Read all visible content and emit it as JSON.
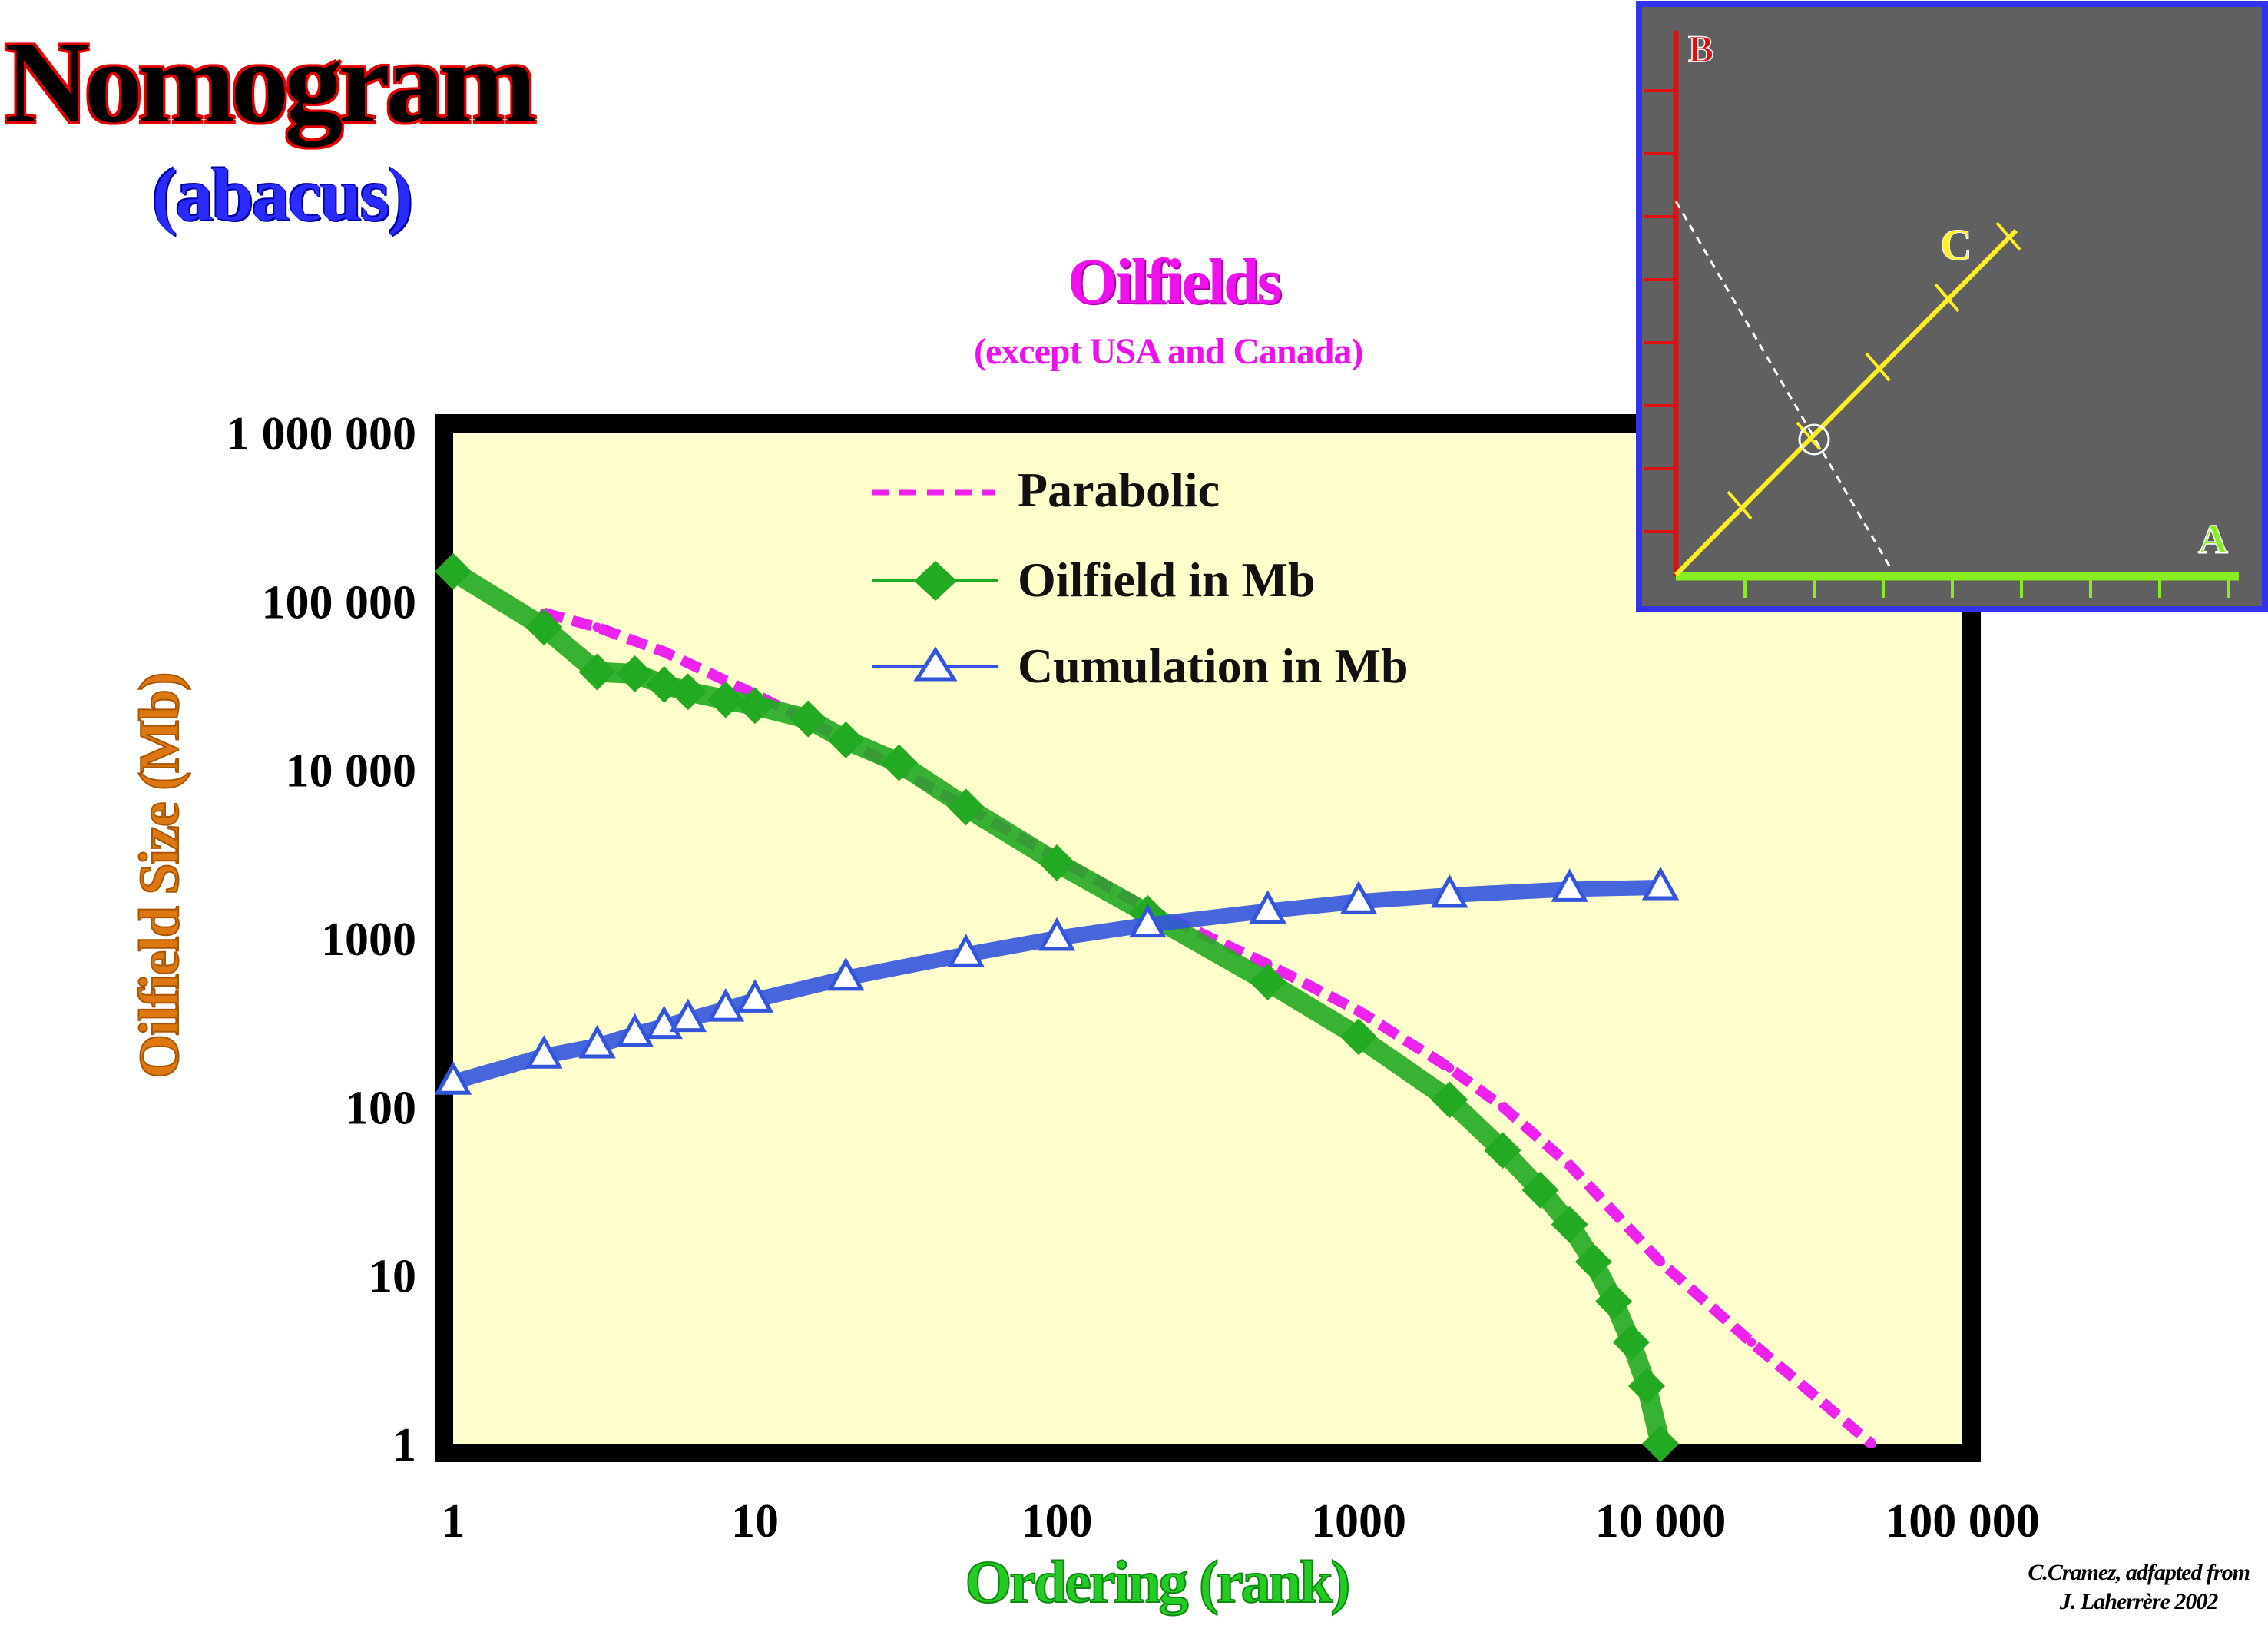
{
  "header": {
    "title": "Nomogram",
    "subtitle": "(abacus)"
  },
  "credit": {
    "line1": "C.Cramez, adfapted from",
    "line2": "J. Laherrère 2002"
  },
  "chart_data": {
    "type": "line",
    "title": "Oilfields",
    "subtitle": "(except USA and Canada)",
    "xlabel": "Ordering (rank)",
    "ylabel": "Oilfield Size (Mb)",
    "x_scale": "log",
    "y_scale": "log",
    "xlim": [
      1,
      100000
    ],
    "ylim": [
      1,
      1000000
    ],
    "x_ticks": [
      {
        "value": 1,
        "label": "1"
      },
      {
        "value": 10,
        "label": "10"
      },
      {
        "value": 100,
        "label": "100"
      },
      {
        "value": 1000,
        "label": "1000"
      },
      {
        "value": 10000,
        "label": "10 000"
      },
      {
        "value": 100000,
        "label": "100 000"
      }
    ],
    "y_ticks": [
      {
        "value": 1,
        "label": "1"
      },
      {
        "value": 10,
        "label": "10"
      },
      {
        "value": 100,
        "label": "100"
      },
      {
        "value": 1000,
        "label": "1000"
      },
      {
        "value": 10000,
        "label": "10 000"
      },
      {
        "value": 100000,
        "label": "100 000"
      },
      {
        "value": 1000000,
        "label": "1 000 000"
      }
    ],
    "grid": false,
    "legend_position": "top-center",
    "plot_background": "#ffffcc",
    "series": [
      {
        "name": "Parabolic",
        "color": "#ee22ee",
        "style": "dashed",
        "points": [
          [
            2,
            85000
          ],
          [
            3,
            70000
          ],
          [
            5,
            50000
          ],
          [
            10,
            28000
          ],
          [
            20,
            15000
          ],
          [
            50,
            6000
          ],
          [
            100,
            3000
          ],
          [
            200,
            1500
          ],
          [
            500,
            700
          ],
          [
            1000,
            370
          ],
          [
            2000,
            170
          ],
          [
            3000,
            100
          ],
          [
            5000,
            45
          ],
          [
            10000,
            12
          ],
          [
            20000,
            4
          ],
          [
            50000,
            1
          ]
        ]
      },
      {
        "name": "Oilfield in Mb",
        "color": "#22aa22",
        "style": "diamond",
        "points": [
          [
            1,
            150000
          ],
          [
            2,
            70000
          ],
          [
            3,
            38000
          ],
          [
            4,
            37000
          ],
          [
            5,
            32000
          ],
          [
            6,
            29000
          ],
          [
            8,
            26000
          ],
          [
            10,
            24000
          ],
          [
            15,
            20000
          ],
          [
            20,
            15000
          ],
          [
            30,
            11000
          ],
          [
            50,
            6000
          ],
          [
            100,
            2800
          ],
          [
            200,
            1400
          ],
          [
            500,
            550
          ],
          [
            1000,
            260
          ],
          [
            2000,
            110
          ],
          [
            3000,
            55
          ],
          [
            4000,
            32
          ],
          [
            5000,
            20
          ],
          [
            6000,
            12
          ],
          [
            7000,
            7
          ],
          [
            8000,
            4
          ],
          [
            9000,
            2.2
          ],
          [
            10000,
            1
          ]
        ]
      },
      {
        "name": "Cumulation in Mb",
        "color": "#3355dd",
        "style": "triangle",
        "points": [
          [
            1,
            140
          ],
          [
            2,
            200
          ],
          [
            3,
            230
          ],
          [
            4,
            270
          ],
          [
            5,
            300
          ],
          [
            6,
            330
          ],
          [
            8,
            380
          ],
          [
            10,
            430
          ],
          [
            20,
            580
          ],
          [
            50,
            800
          ],
          [
            100,
            1000
          ],
          [
            200,
            1200
          ],
          [
            500,
            1450
          ],
          [
            1000,
            1650
          ],
          [
            2000,
            1800
          ],
          [
            5000,
            1950
          ],
          [
            10000,
            2000
          ]
        ]
      }
    ],
    "inset": {
      "type": "diagram",
      "labels": {
        "a": "A",
        "b": "B",
        "c": "C"
      },
      "axis_colors": {
        "a": "#88ee22",
        "b": "#dd1111",
        "c": "#ffee22"
      },
      "background": "#606060",
      "frame_color": "#3333ee"
    }
  }
}
